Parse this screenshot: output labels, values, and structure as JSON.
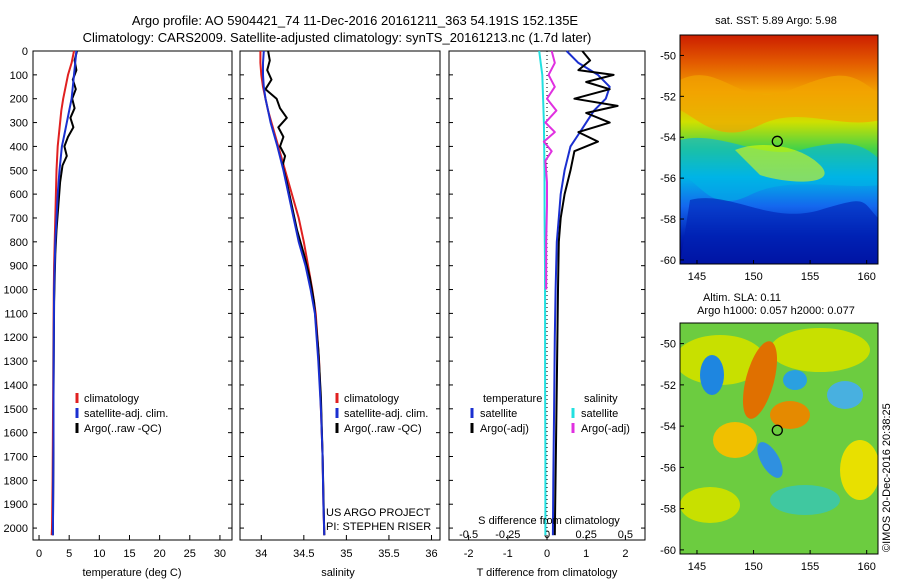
{
  "header": {
    "line1": "Argo profile: AO 5904421_74 11-Dec-2016 20161211_363 54.191S 152.135E",
    "line2": "Climatology: CARS2009. Satellite-adjusted climatology: synTS_20161213.nc (1.7d later)"
  },
  "colors": {
    "climatology": "#e02020",
    "satellite": "#1a2fd0",
    "argo": "#000000",
    "sal_satellite": "#22e0e0",
    "sal_argo": "#e030e0"
  },
  "depth_ticks": [
    "0",
    "100",
    "200",
    "300",
    "400",
    "500",
    "600",
    "700",
    "800",
    "900",
    "1000",
    "1100",
    "1200",
    "1300",
    "1400",
    "1500",
    "1600",
    "1700",
    "1800",
    "1900",
    "2000"
  ],
  "project_note": [
    "US ARGO PROJECT",
    "PI: STEPHEN RISER"
  ],
  "stamp": "©IMOS 20-Dec-2016 20:38:25",
  "chart_data": [
    {
      "type": "line",
      "id": "temperature",
      "xlabel": "temperature (deg C)",
      "xlim": [
        -1,
        32
      ],
      "ylim": [
        2050,
        0
      ],
      "xticks": [
        "0",
        "5",
        "10",
        "15",
        "20",
        "25",
        "30"
      ],
      "legend": [
        "climatology",
        "satellite-adj. clim.",
        "Argo(..raw -QC)"
      ],
      "series": [
        {
          "name": "climatology",
          "x": [
            5.8,
            5.4,
            4.8,
            4.4,
            4.0,
            3.7,
            3.5,
            3.3,
            3.1,
            2.9,
            2.8,
            2.7,
            2.6,
            2.5,
            2.45,
            2.4,
            2.35,
            2.3,
            2.25,
            2.2,
            2.15,
            2.1
          ],
          "y": [
            0,
            50,
            100,
            150,
            200,
            250,
            300,
            350,
            400,
            500,
            600,
            700,
            800,
            900,
            1000,
            1200,
            1400,
            1600,
            1800,
            1900,
            2000,
            2030
          ]
        },
        {
          "name": "satellite-adj. clim.",
          "x": [
            6.2,
            6.0,
            5.8,
            5.6,
            5.4,
            5.0,
            4.6,
            4.2,
            3.8,
            3.4,
            3.1,
            2.9,
            2.7,
            2.6,
            2.5,
            2.45,
            2.4,
            2.4,
            2.35,
            2.3
          ],
          "y": [
            0,
            50,
            100,
            150,
            200,
            250,
            300,
            350,
            400,
            500,
            600,
            700,
            800,
            900,
            1000,
            1200,
            1400,
            1600,
            1800,
            2030
          ]
        },
        {
          "name": "Argo(..raw -QC)",
          "x": [
            6.3,
            5.9,
            6.2,
            5.6,
            6.1,
            5.5,
            5.9,
            5.2,
            5.7,
            4.8,
            4.2,
            4.6,
            3.9,
            3.5,
            3.2,
            2.9,
            2.7,
            2.6,
            2.5,
            2.45,
            2.4,
            2.4,
            2.35,
            2.3
          ],
          "y": [
            0,
            40,
            80,
            120,
            160,
            200,
            240,
            280,
            320,
            360,
            400,
            440,
            480,
            550,
            650,
            750,
            850,
            950,
            1050,
            1250,
            1450,
            1650,
            1850,
            2030
          ]
        }
      ]
    },
    {
      "type": "line",
      "id": "salinity",
      "xlabel": "salinity",
      "xlim": [
        33.75,
        36.1
      ],
      "ylim": [
        2050,
        0
      ],
      "xticks": [
        "34",
        "34.5",
        "35",
        "35.5",
        "36"
      ],
      "legend": [
        "climatology",
        "satellite-adj. clim.",
        "Argo(..raw -QC)"
      ],
      "series": [
        {
          "name": "climatology",
          "x": [
            33.99,
            33.99,
            34.0,
            34.02,
            34.05,
            34.08,
            34.12,
            34.16,
            34.2,
            34.28,
            34.36,
            34.44,
            34.5,
            34.55,
            34.6,
            34.64,
            34.68,
            34.7,
            34.72,
            34.73,
            34.74
          ],
          "y": [
            0,
            50,
            100,
            150,
            200,
            250,
            300,
            350,
            400,
            500,
            600,
            700,
            800,
            900,
            1000,
            1100,
            1300,
            1500,
            1700,
            1900,
            2030
          ]
        },
        {
          "name": "satellite-adj. clim.",
          "x": [
            34.03,
            34.02,
            34.02,
            34.03,
            34.05,
            34.08,
            34.11,
            34.15,
            34.19,
            34.26,
            34.32,
            34.38,
            34.44,
            34.52,
            34.58,
            34.63,
            34.67,
            34.7,
            34.72,
            34.73,
            34.74
          ],
          "y": [
            0,
            50,
            100,
            150,
            200,
            250,
            300,
            350,
            400,
            500,
            600,
            700,
            800,
            900,
            1000,
            1100,
            1300,
            1500,
            1700,
            1900,
            2030
          ]
        },
        {
          "name": "Argo(..raw -QC)",
          "x": [
            34.08,
            34.1,
            34.07,
            34.12,
            34.05,
            34.18,
            34.22,
            34.3,
            34.2,
            34.26,
            34.22,
            34.28,
            34.25,
            34.3,
            34.36,
            34.42,
            34.5,
            34.57,
            34.62,
            34.67,
            34.7,
            34.72,
            34.74
          ],
          "y": [
            0,
            40,
            80,
            120,
            160,
            200,
            240,
            280,
            320,
            360,
            400,
            440,
            480,
            550,
            650,
            750,
            850,
            950,
            1050,
            1250,
            1450,
            1700,
            2030
          ]
        }
      ]
    },
    {
      "type": "line",
      "id": "difference",
      "xlabel": "T difference from climatology",
      "xlabel_top": "S difference from climatology",
      "xlim": [
        -2.5,
        2.5
      ],
      "ylim": [
        2050,
        0
      ],
      "xticks": [
        "-2",
        "-1",
        "0",
        "1",
        "2"
      ],
      "xticks_top": [
        "-0.5",
        "-0.25",
        "0",
        "0.25",
        "0.5"
      ],
      "legend_left": [
        "temperature",
        "satellite",
        "Argo(-adj)"
      ],
      "legend_right": [
        "salinity",
        "satellite",
        "Argo(-adj)"
      ],
      "series": [
        {
          "name": "satellite",
          "x": [
            0.5,
            0.8,
            1.3,
            1.6,
            1.5,
            1.2,
            1.0,
            0.8,
            0.6,
            0.45,
            0.35,
            0.3,
            0.25,
            0.22,
            0.2,
            0.18,
            0.16,
            0.15
          ],
          "y": [
            0,
            50,
            100,
            150,
            200,
            250,
            300,
            350,
            400,
            500,
            600,
            700,
            800,
            1000,
            1200,
            1500,
            1800,
            2030
          ]
        },
        {
          "name": "Argo(-adj)",
          "x": [
            0.9,
            1.1,
            0.8,
            1.7,
            1.0,
            1.6,
            0.7,
            1.8,
            1.0,
            1.6,
            0.8,
            1.3,
            0.7,
            0.6,
            0.45,
            0.35,
            0.3,
            0.28,
            0.25,
            0.2
          ],
          "y": [
            0,
            40,
            80,
            100,
            130,
            160,
            200,
            230,
            260,
            300,
            340,
            380,
            420,
            500,
            600,
            700,
            800,
            1000,
            1400,
            2030
          ]
        },
        {
          "name": "satellite",
          "x": [
            -0.05,
            -0.04,
            -0.03,
            -0.025,
            -0.02,
            -0.018,
            -0.016,
            -0.015,
            -0.013,
            -0.012,
            -0.012,
            -0.01,
            -0.01
          ],
          "y": [
            0,
            50,
            100,
            200,
            300,
            400,
            500,
            700,
            900,
            1100,
            1400,
            1700,
            2030
          ]
        },
        {
          "name": "Argo(-adj)",
          "x": [
            0.03,
            0.05,
            0.01,
            0.05,
            0.0,
            0.06,
            -0.01,
            0.05,
            -0.02,
            0.03,
            -0.01,
            0.0,
            0.0,
            -0.005,
            -0.005
          ],
          "y": [
            0,
            50,
            100,
            150,
            200,
            250,
            300,
            340,
            380,
            420,
            460,
            550,
            650,
            800,
            1000
          ]
        }
      ]
    }
  ],
  "maps": [
    {
      "id": "sst-map",
      "type": "heatmap",
      "title": "sat. SST: 5.89  Argo: 5.98",
      "xticks": [
        "145",
        "150",
        "155",
        "160"
      ],
      "yticks": [
        "-50",
        "-52",
        "-54",
        "-56",
        "-58",
        "-60"
      ],
      "marker": [
        152.1,
        -54.2
      ]
    },
    {
      "id": "sla-map",
      "type": "heatmap",
      "title1": "Altim. SLA: 0.11",
      "title2": "Argo h1000: 0.057 h2000: 0.077",
      "xticks": [
        "145",
        "150",
        "155",
        "160"
      ],
      "yticks": [
        "-50",
        "-52",
        "-54",
        "-56",
        "-58",
        "-60"
      ],
      "marker": [
        152.1,
        -54.2
      ]
    }
  ]
}
